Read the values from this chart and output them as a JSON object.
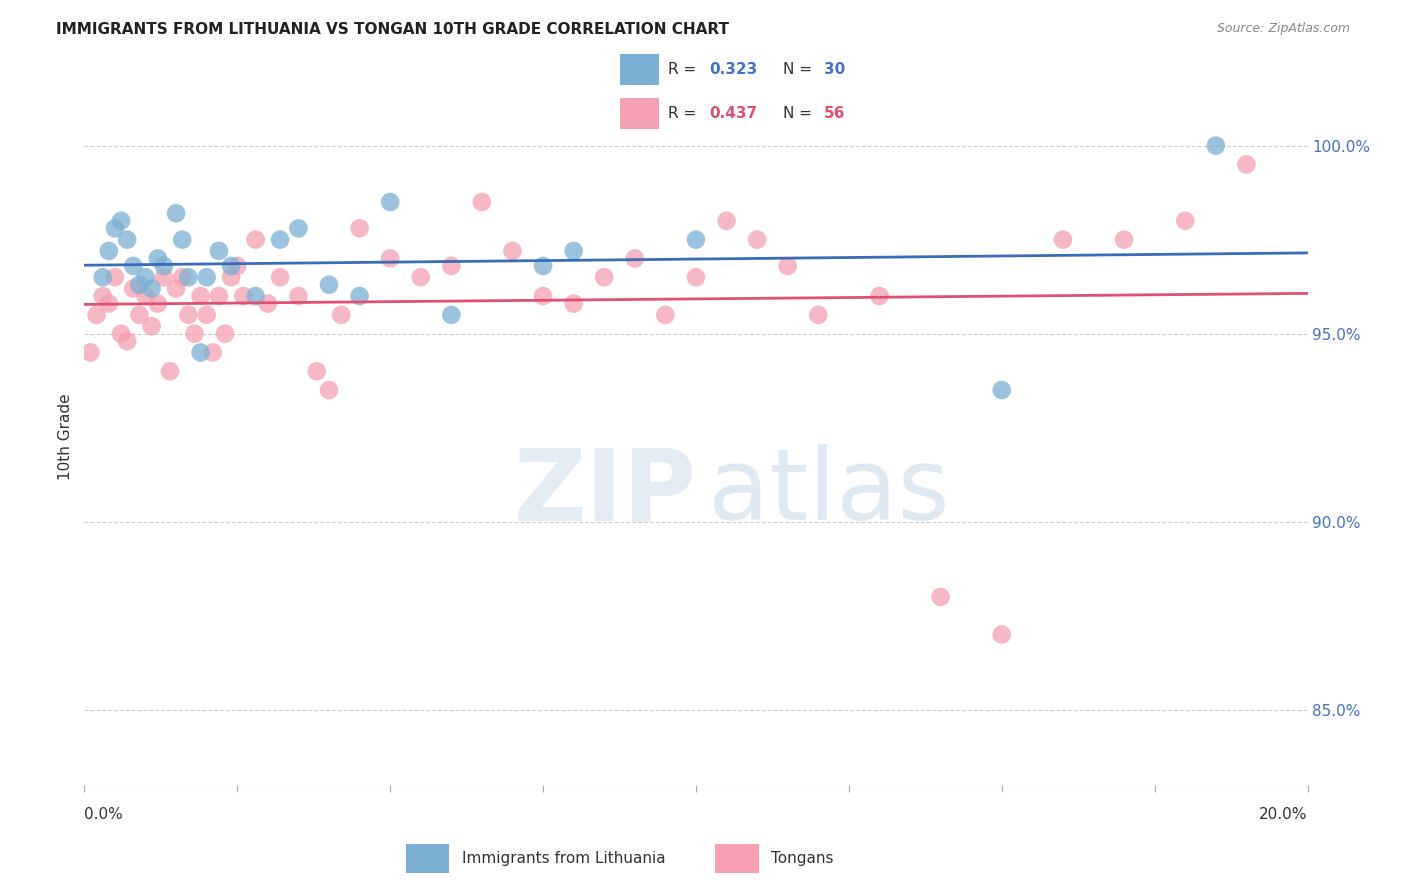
{
  "title": "IMMIGRANTS FROM LITHUANIA VS TONGAN 10TH GRADE CORRELATION CHART",
  "source": "Source: ZipAtlas.com",
  "ylabel": "10th Grade",
  "xmin": 0.0,
  "xmax": 20.0,
  "ymin": 83.0,
  "ymax": 101.5,
  "yticks_right": [
    85.0,
    90.0,
    95.0,
    100.0
  ],
  "ytick_labels_right": [
    "85.0%",
    "90.0%",
    "95.0%",
    "100.0%"
  ],
  "r_blue": 0.323,
  "n_blue": 30,
  "r_pink": 0.437,
  "n_pink": 56,
  "legend_label_blue": "Immigrants from Lithuania",
  "legend_label_pink": "Tongans",
  "blue_scatter_x": [
    0.3,
    0.4,
    0.5,
    0.6,
    0.7,
    0.8,
    0.9,
    1.0,
    1.1,
    1.2,
    1.3,
    1.5,
    1.6,
    1.7,
    1.9,
    2.0,
    2.2,
    2.4,
    2.8,
    3.2,
    3.5,
    4.0,
    4.5,
    5.0,
    6.0,
    7.5,
    8.0,
    10.0,
    15.0,
    18.5
  ],
  "blue_scatter_y": [
    96.5,
    97.2,
    97.8,
    98.0,
    97.5,
    96.8,
    96.3,
    96.5,
    96.2,
    97.0,
    96.8,
    98.2,
    97.5,
    96.5,
    94.5,
    96.5,
    97.2,
    96.8,
    96.0,
    97.5,
    97.8,
    96.3,
    96.0,
    98.5,
    95.5,
    96.8,
    97.2,
    97.5,
    93.5,
    100.0
  ],
  "pink_scatter_x": [
    0.1,
    0.2,
    0.3,
    0.4,
    0.5,
    0.6,
    0.7,
    0.8,
    0.9,
    1.0,
    1.1,
    1.2,
    1.3,
    1.4,
    1.5,
    1.6,
    1.7,
    1.8,
    1.9,
    2.0,
    2.1,
    2.2,
    2.3,
    2.4,
    2.5,
    2.6,
    2.8,
    3.0,
    3.2,
    3.5,
    3.8,
    4.0,
    4.2,
    4.5,
    5.0,
    5.5,
    6.0,
    6.5,
    7.0,
    7.5,
    8.0,
    8.5,
    9.0,
    9.5,
    10.0,
    10.5,
    11.0,
    11.5,
    12.0,
    13.0,
    14.0,
    15.0,
    16.0,
    17.0,
    18.0,
    19.0
  ],
  "pink_scatter_y": [
    94.5,
    95.5,
    96.0,
    95.8,
    96.5,
    95.0,
    94.8,
    96.2,
    95.5,
    96.0,
    95.2,
    95.8,
    96.5,
    94.0,
    96.2,
    96.5,
    95.5,
    95.0,
    96.0,
    95.5,
    94.5,
    96.0,
    95.0,
    96.5,
    96.8,
    96.0,
    97.5,
    95.8,
    96.5,
    96.0,
    94.0,
    93.5,
    95.5,
    97.8,
    97.0,
    96.5,
    96.8,
    98.5,
    97.2,
    96.0,
    95.8,
    96.5,
    97.0,
    95.5,
    96.5,
    98.0,
    97.5,
    96.8,
    95.5,
    96.0,
    88.0,
    87.0,
    97.5,
    97.5,
    98.0,
    99.5
  ],
  "blue_color": "#7bafd4",
  "pink_color": "#f4a0b0",
  "blue_line_color": "#3a6db5",
  "pink_line_color": "#e05070",
  "background_color": "#ffffff",
  "grid_color": "#cccccc"
}
